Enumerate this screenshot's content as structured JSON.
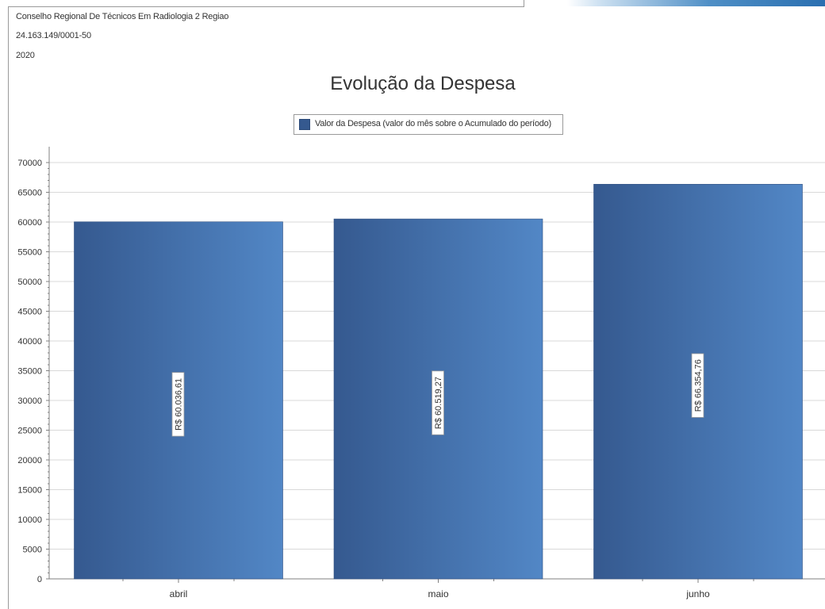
{
  "header": {
    "organization": "Conselho Regional De Técnicos Em Radiologia 2 Regiao",
    "cnpj": "24.163.149/0001-50",
    "year": "2020"
  },
  "colors": {
    "bar_dark": "#35598f",
    "bar_light": "#5287c6",
    "grid": "#d9d9d9",
    "axis": "#808080"
  },
  "chart_data": {
    "type": "bar",
    "title": "Evolução da Despesa",
    "xlabel": "",
    "ylabel": "",
    "categories": [
      "abril",
      "maio",
      "junho"
    ],
    "series": [
      {
        "name": "Valor da Despesa (valor do mês sobre o Acumulado do período)",
        "values": [
          60036.61,
          60519.27,
          66354.76
        ],
        "labels": [
          "R$ 60.036,61",
          "R$ 60.519,27",
          "R$ 66.354,76"
        ]
      }
    ],
    "ylim": [
      0,
      70000
    ],
    "yticks": [
      0,
      5000,
      10000,
      15000,
      20000,
      25000,
      30000,
      35000,
      40000,
      45000,
      50000,
      55000,
      60000,
      65000,
      70000
    ],
    "grid": true,
    "legend": "top-center"
  }
}
